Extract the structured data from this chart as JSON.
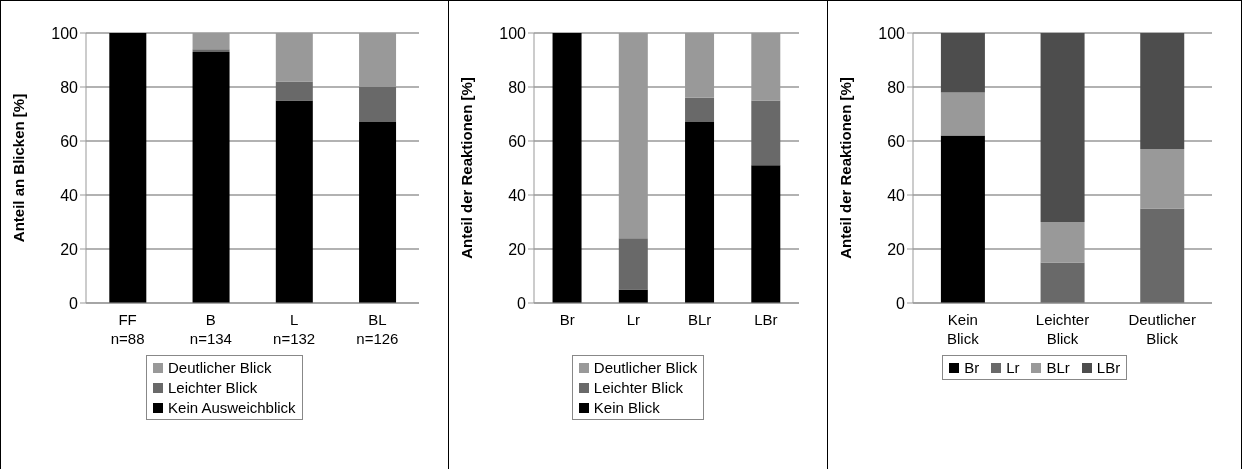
{
  "chart_data": [
    {
      "type": "bar",
      "stacked": true,
      "ylabel": "Anteil an Blicken [%]",
      "categories": [
        "FF n=88",
        "B n=134",
        "L n=132",
        "BL n=126"
      ],
      "ylim": [
        0,
        100
      ],
      "yticks": [
        0,
        20,
        40,
        60,
        80,
        100
      ],
      "grid": "y",
      "legend": "bottom",
      "series": [
        {
          "name": "Kein Ausweichblick",
          "color": "#000000",
          "values": [
            100,
            93,
            75,
            67
          ]
        },
        {
          "name": "Leichter Blick",
          "color": "#696969",
          "values": [
            0,
            1,
            7,
            13
          ]
        },
        {
          "name": "Deutlicher Blick",
          "color": "#999999",
          "values": [
            0,
            6,
            18,
            20
          ]
        }
      ]
    },
    {
      "type": "bar",
      "stacked": true,
      "ylabel": "Anteil der Reaktionen [%]",
      "categories": [
        "Br",
        "Lr",
        "BLr",
        "LBr"
      ],
      "ylim": [
        0,
        100
      ],
      "yticks": [
        0,
        20,
        40,
        60,
        80,
        100
      ],
      "grid": "y",
      "legend": "bottom",
      "series": [
        {
          "name": "Kein Blick",
          "color": "#000000",
          "values": [
            100,
            5,
            67,
            51
          ]
        },
        {
          "name": "Leichter Blick",
          "color": "#696969",
          "values": [
            0,
            19,
            9,
            24
          ]
        },
        {
          "name": "Deutlicher Blick",
          "color": "#999999",
          "values": [
            0,
            76,
            24,
            25
          ]
        }
      ]
    },
    {
      "type": "bar",
      "stacked": true,
      "ylabel": "Anteil der Reaktionen [%]",
      "categories": [
        "Kein Blick",
        "Leichter Blick",
        "Deutlicher Blick"
      ],
      "ylim": [
        0,
        100
      ],
      "yticks": [
        0,
        20,
        40,
        60,
        80,
        100
      ],
      "grid": "y",
      "legend": "bottom",
      "series": [
        {
          "name": "Br",
          "color": "#000000",
          "values": [
            62,
            0,
            0
          ]
        },
        {
          "name": "Lr",
          "color": "#696969",
          "values": [
            0,
            15,
            35
          ]
        },
        {
          "name": "BLr",
          "color": "#999999",
          "values": [
            16,
            15,
            22
          ]
        },
        {
          "name": "LBr",
          "color": "#4d4d4d",
          "values": [
            22,
            70,
            43
          ]
        }
      ]
    }
  ]
}
